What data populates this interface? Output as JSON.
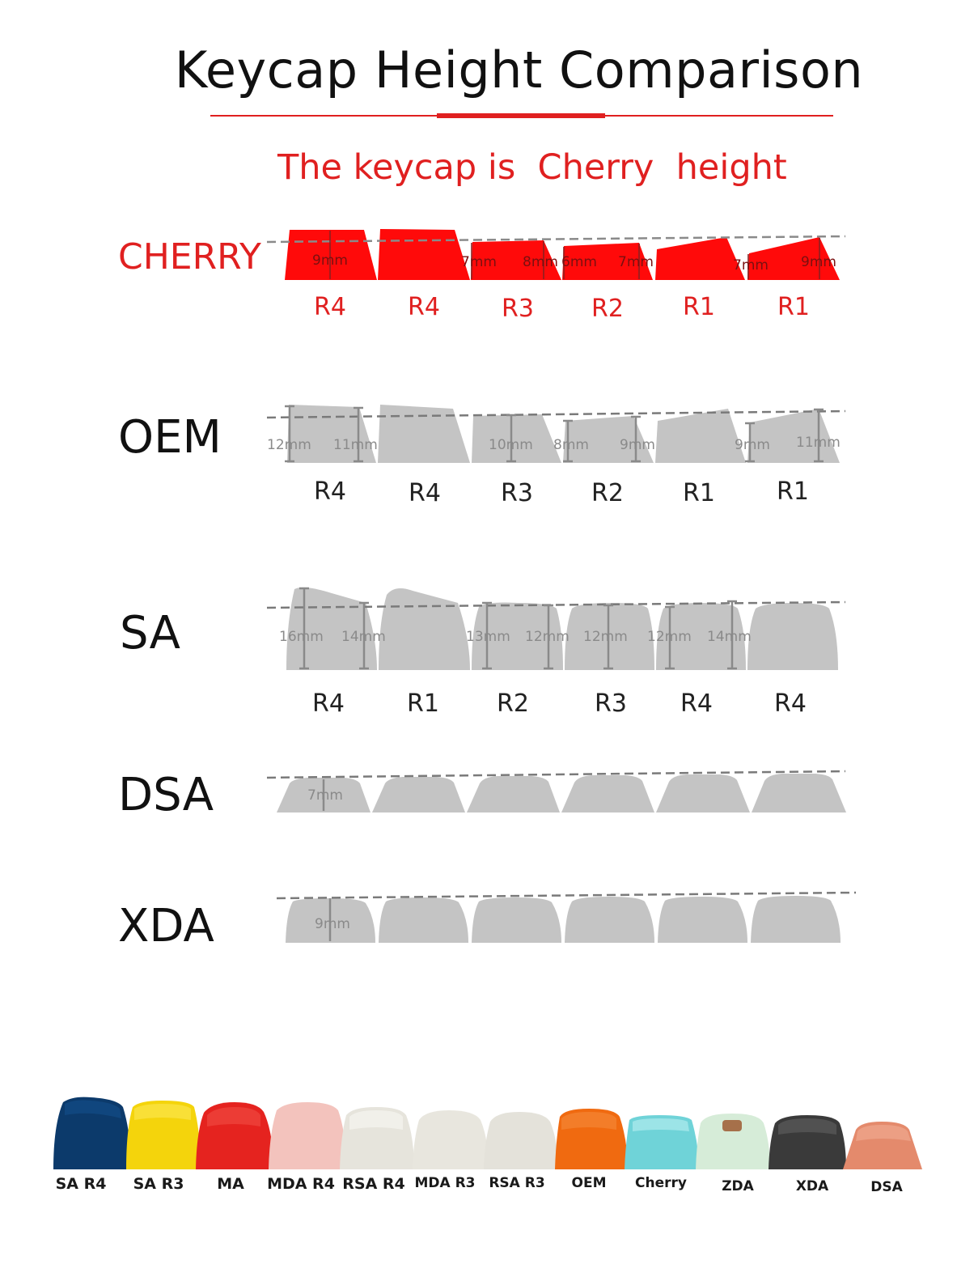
{
  "title": "Keycap Height Comparison",
  "subtitle": "The keycap is  Cherry  height",
  "colors": {
    "accent_red": "#e02020",
    "cherry_fill": "#ff0a0a",
    "profile_gray": "#c4c4c4",
    "dashed_line": "#8a8a8a"
  },
  "profiles": [
    {
      "name": "CHERRY",
      "rows": [
        "R4",
        "R4",
        "R3",
        "R2",
        "R1",
        "R1"
      ],
      "measurements": [
        "9mm",
        "7mm",
        "8mm",
        "6mm",
        "7mm",
        "7mm",
        "9mm"
      ]
    },
    {
      "name": "OEM",
      "rows": [
        "R4",
        "R4",
        "R3",
        "R2",
        "R1",
        "R1"
      ],
      "measurements": [
        "12mm",
        "11mm",
        "10mm",
        "8mm",
        "9mm",
        "9mm",
        "11mm"
      ]
    },
    {
      "name": "SA",
      "rows": [
        "R4",
        "R1",
        "R2",
        "R3",
        "R4",
        "R4"
      ],
      "measurements": [
        "16mm",
        "14mm",
        "13mm",
        "12mm",
        "12mm",
        "12mm",
        "14mm"
      ]
    },
    {
      "name": "DSA",
      "rows": [],
      "measurements": [
        "7mm"
      ]
    },
    {
      "name": "XDA",
      "rows": [],
      "measurements": [
        "9mm"
      ]
    }
  ],
  "keycap_samples": [
    {
      "label": "SA R4",
      "color": "#0c3a6b"
    },
    {
      "label": "SA R3",
      "color": "#f4d40c"
    },
    {
      "label": "MA",
      "color": "#e5231f"
    },
    {
      "label": "MDA R4",
      "color": "#f3c3bd"
    },
    {
      "label": "RSA R4",
      "color": "#e6e4dc"
    },
    {
      "label": "MDA R3",
      "color": "#e8e6de"
    },
    {
      "label": "RSA R3",
      "color": "#e4e2da"
    },
    {
      "label": "OEM",
      "color": "#f06a10"
    },
    {
      "label": "Cherry",
      "color": "#6fd3d8"
    },
    {
      "label": "ZDA",
      "color": "#d6ecd8"
    },
    {
      "label": "XDA",
      "color": "#3a3a3a"
    },
    {
      "label": "DSA",
      "color": "#e48a6c"
    }
  ]
}
